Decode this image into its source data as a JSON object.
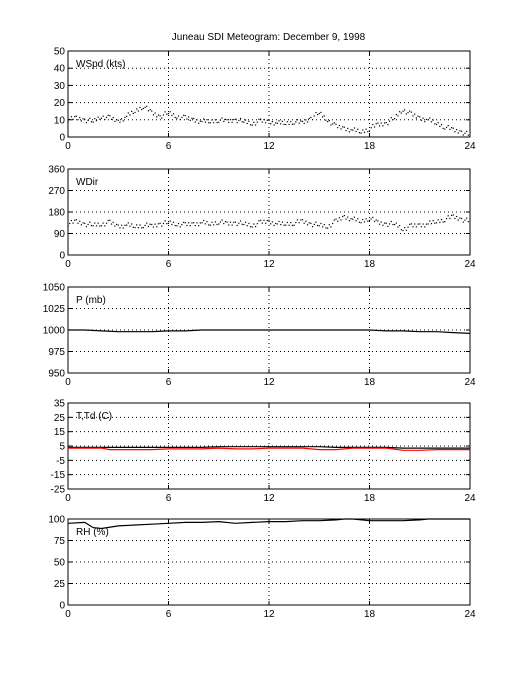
{
  "title": "Juneau SDI Meteogram:  December  9, 1998",
  "colors": {
    "axis": "#000000",
    "grid": "#000000",
    "series_primary": "#000000",
    "dewpoint": "#ff0000"
  },
  "chart_data": [
    {
      "type": "scatter",
      "label": "WSpd (kts)",
      "xlim": [
        0,
        24
      ],
      "xticks": [
        0,
        6,
        12,
        18,
        24
      ],
      "ylim": [
        0,
        50
      ],
      "yticks": [
        0,
        10,
        20,
        30,
        40,
        50
      ],
      "grid": true,
      "series": [
        {
          "x": [
            0,
            0.5,
            1,
            1.5,
            2,
            2.5,
            3,
            3.5,
            4,
            4.5,
            5,
            5.5,
            6,
            6.5,
            7,
            7.5,
            8,
            8.5,
            9,
            9.5,
            10,
            10.5,
            11,
            11.5,
            12,
            12.5,
            13,
            13.5,
            14,
            14.5,
            15,
            15.5,
            16,
            16.5,
            17,
            17.5,
            18,
            18.5,
            19,
            19.5,
            20,
            20.5,
            21,
            21.5,
            22,
            22.5,
            23,
            23.5,
            24
          ],
          "y": [
            10,
            11,
            10,
            9,
            12,
            11,
            9,
            12,
            15,
            18,
            14,
            12,
            14,
            12,
            11,
            10,
            9,
            9,
            10,
            9,
            10,
            9,
            8,
            9,
            9,
            8,
            8,
            9,
            8,
            11,
            14,
            10,
            6,
            5,
            4,
            3,
            5,
            7,
            8,
            11,
            16,
            13,
            11,
            10,
            8,
            6,
            4,
            3,
            1
          ]
        }
      ]
    },
    {
      "type": "scatter",
      "label": "WDir",
      "xlim": [
        0,
        24
      ],
      "xticks": [
        0,
        6,
        12,
        18,
        24
      ],
      "ylim": [
        0,
        360
      ],
      "yticks": [
        0,
        90,
        180,
        270,
        360
      ],
      "grid": true,
      "series": [
        {
          "x": [
            0,
            0.5,
            1,
            1.5,
            2,
            2.5,
            3,
            3.5,
            4,
            4.5,
            5,
            5.5,
            6,
            6.5,
            7,
            7.5,
            8,
            8.5,
            9,
            9.5,
            10,
            10.5,
            11,
            11.5,
            12,
            12.5,
            13,
            13.5,
            14,
            14.5,
            15,
            15.5,
            16,
            16.5,
            17,
            17.5,
            18,
            18.5,
            19,
            19.5,
            20,
            20.5,
            21,
            21.5,
            22,
            22.5,
            23,
            23.5,
            24
          ],
          "y": [
            130,
            140,
            130,
            125,
            130,
            135,
            120,
            125,
            120,
            125,
            120,
            130,
            135,
            130,
            125,
            130,
            135,
            130,
            140,
            130,
            135,
            130,
            125,
            135,
            140,
            130,
            130,
            135,
            140,
            130,
            125,
            120,
            140,
            160,
            150,
            140,
            155,
            135,
            130,
            130,
            110,
            120,
            125,
            130,
            140,
            150,
            160,
            150,
            140
          ]
        }
      ]
    },
    {
      "type": "line",
      "label": "P (mb)",
      "xlim": [
        0,
        24
      ],
      "xticks": [
        0,
        6,
        12,
        18,
        24
      ],
      "ylim": [
        950,
        1050
      ],
      "yticks": [
        950,
        975,
        1000,
        1025,
        1050
      ],
      "grid": true,
      "series": [
        {
          "x": [
            0,
            1,
            2,
            3,
            4,
            5,
            6,
            7,
            8,
            9,
            10,
            11,
            12,
            13,
            14,
            15,
            16,
            17,
            18,
            19,
            20,
            21,
            22,
            23,
            24
          ],
          "y": [
            1000,
            1000,
            999,
            998,
            998,
            998,
            999,
            999,
            1000,
            1000,
            1000,
            1000,
            1000,
            1000,
            1000,
            1000,
            1000,
            1000,
            1000,
            999,
            999,
            998,
            998,
            997,
            996
          ]
        }
      ]
    },
    {
      "type": "line",
      "label": "T,Td (C)",
      "xlim": [
        0,
        24
      ],
      "xticks": [
        0,
        6,
        12,
        18,
        24
      ],
      "ylim": [
        -25,
        35
      ],
      "yticks": [
        -25,
        -15,
        -5,
        5,
        15,
        25,
        35
      ],
      "grid": true,
      "series": [
        {
          "color": "#000000",
          "x": [
            0,
            1,
            2,
            3,
            4,
            5,
            6,
            7,
            8,
            9,
            10,
            11,
            12,
            13,
            14,
            15,
            16,
            17,
            18,
            19,
            20,
            21,
            22,
            23,
            24
          ],
          "y": [
            4,
            4,
            4,
            4,
            4,
            4,
            4,
            4,
            4,
            4.5,
            4.5,
            4.5,
            4.5,
            4.5,
            4.5,
            4.5,
            4,
            4,
            4,
            4,
            3.5,
            3.5,
            3.5,
            3.5,
            3.5
          ]
        },
        {
          "color": "#ff0000",
          "x": [
            0,
            1,
            2,
            2.5,
            3,
            4,
            5,
            6,
            7,
            8,
            9,
            10,
            11,
            12,
            13,
            14,
            15,
            16,
            17,
            18,
            19,
            20,
            21,
            22,
            23,
            24
          ],
          "y": [
            3.5,
            3.5,
            3.5,
            2.5,
            2.5,
            2.5,
            2.5,
            3,
            3,
            3,
            3.5,
            3,
            3,
            3.5,
            3.5,
            3.5,
            2.5,
            2.5,
            3.5,
            3.5,
            3.5,
            2,
            2,
            2.5,
            2.5,
            2.5
          ]
        }
      ]
    },
    {
      "type": "line",
      "label": "RH (%)",
      "xlim": [
        0,
        24
      ],
      "xticks": [
        0,
        6,
        12,
        18,
        24
      ],
      "ylim": [
        0,
        100
      ],
      "yticks": [
        0,
        25,
        50,
        75,
        100
      ],
      "grid": true,
      "series": [
        {
          "x": [
            0,
            1,
            1.5,
            2,
            3,
            4,
            5,
            6,
            7,
            8,
            9,
            10,
            11,
            12,
            13,
            14,
            15,
            16,
            16.5,
            17,
            18,
            19,
            20,
            21,
            21.5,
            22,
            23,
            24
          ],
          "y": [
            95,
            96,
            90,
            89,
            92,
            93,
            94,
            95,
            96,
            96,
            97,
            95,
            96,
            97,
            97,
            98,
            98,
            99,
            100,
            100,
            98,
            98,
            98,
            99,
            100,
            100,
            100,
            100
          ]
        }
      ]
    }
  ]
}
